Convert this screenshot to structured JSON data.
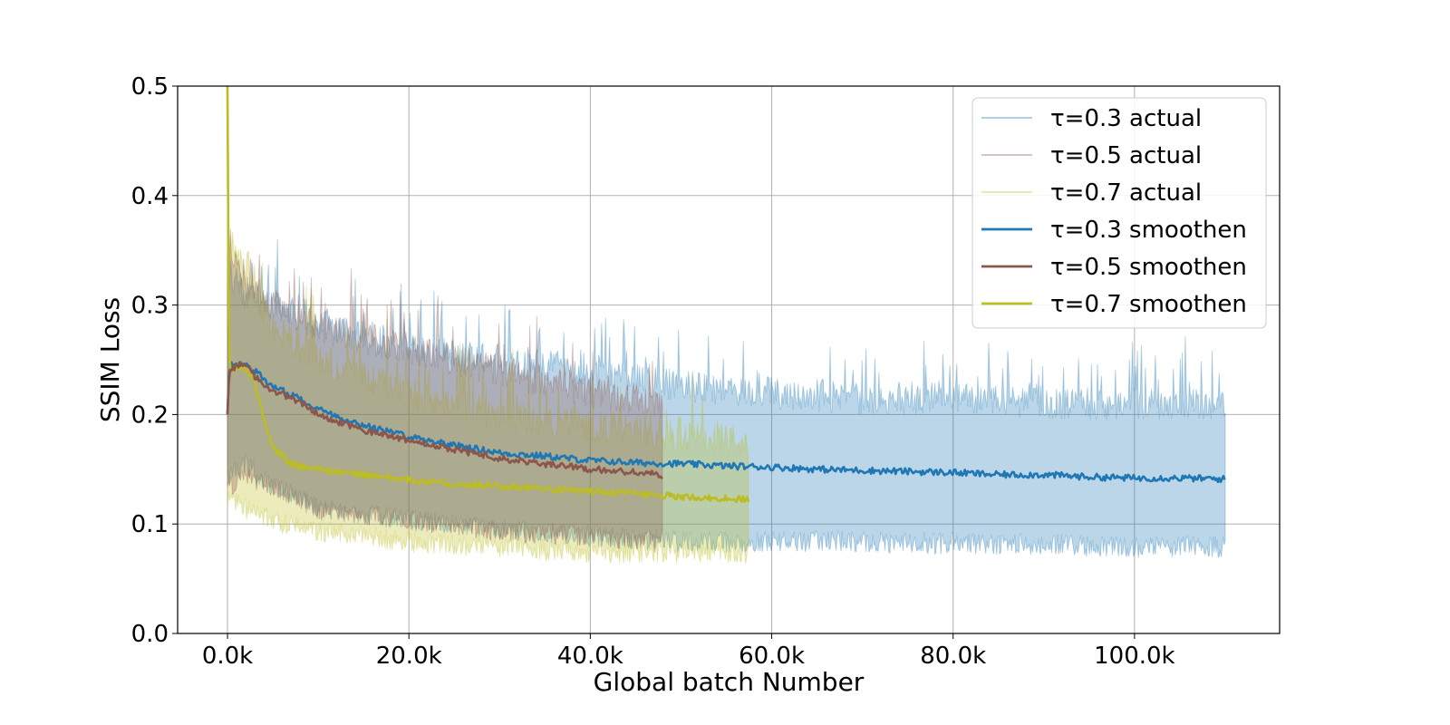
{
  "chart_data": {
    "type": "line",
    "title": "",
    "xlabel": "Global batch Number",
    "ylabel": "SSIM Loss",
    "xlim": [
      -5500,
      116000
    ],
    "ylim": [
      0.0,
      0.5
    ],
    "x_ticks": [
      0,
      20000,
      40000,
      60000,
      80000,
      100000
    ],
    "x_tick_labels": [
      "0.0k",
      "20.0k",
      "40.0k",
      "60.0k",
      "80.0k",
      "100.0k"
    ],
    "y_ticks": [
      0.0,
      0.1,
      0.2,
      0.3,
      0.4,
      0.5
    ],
    "y_tick_labels": [
      "0.0",
      "0.1",
      "0.2",
      "0.3",
      "0.4",
      "0.5"
    ],
    "grid": true,
    "legend_position": "top-right",
    "series": [
      {
        "name": "τ=0.3 actual",
        "kind": "band",
        "color": "#1f77b4",
        "opacity": 0.3,
        "x": [
          0,
          2000,
          5000,
          10000,
          20000,
          30000,
          40000,
          50000,
          60000,
          70000,
          80000,
          90000,
          100000,
          110000
        ],
        "lower": [
          0.15,
          0.16,
          0.14,
          0.12,
          0.11,
          0.1,
          0.095,
          0.09,
          0.09,
          0.09,
          0.088,
          0.087,
          0.085,
          0.085
        ],
        "upper": [
          0.33,
          0.31,
          0.3,
          0.28,
          0.26,
          0.25,
          0.24,
          0.225,
          0.22,
          0.215,
          0.215,
          0.21,
          0.21,
          0.21
        ]
      },
      {
        "name": "τ=0.5 actual",
        "kind": "band",
        "color": "#8c564b",
        "opacity": 0.3,
        "x": [
          0,
          2000,
          5000,
          10000,
          20000,
          30000,
          40000,
          48000
        ],
        "lower": [
          0.14,
          0.15,
          0.14,
          0.12,
          0.11,
          0.1,
          0.095,
          0.09
        ],
        "upper": [
          0.34,
          0.32,
          0.3,
          0.28,
          0.26,
          0.24,
          0.22,
          0.21
        ]
      },
      {
        "name": "τ=0.7 actual",
        "kind": "band",
        "color": "#bcbd22",
        "opacity": 0.3,
        "x": [
          0,
          2000,
          5000,
          10000,
          20000,
          30000,
          40000,
          50000,
          57500
        ],
        "lower": [
          0.13,
          0.12,
          0.11,
          0.1,
          0.09,
          0.085,
          0.08,
          0.08,
          0.08
        ],
        "upper": [
          0.36,
          0.33,
          0.28,
          0.25,
          0.22,
          0.2,
          0.19,
          0.18,
          0.175
        ]
      },
      {
        "name": "τ=0.3 smoothen",
        "kind": "line",
        "color": "#1f77b4",
        "x": [
          0,
          200,
          1000,
          2000,
          3000,
          5000,
          8000,
          10000,
          15000,
          20000,
          25000,
          30000,
          35000,
          40000,
          45000,
          50000,
          55000,
          60000,
          65000,
          70000,
          75000,
          80000,
          85000,
          90000,
          95000,
          100000,
          105000,
          110000
        ],
        "y": [
          0.2,
          0.245,
          0.246,
          0.245,
          0.24,
          0.225,
          0.215,
          0.205,
          0.19,
          0.18,
          0.172,
          0.165,
          0.162,
          0.158,
          0.156,
          0.155,
          0.153,
          0.152,
          0.15,
          0.149,
          0.148,
          0.147,
          0.145,
          0.145,
          0.143,
          0.142,
          0.142,
          0.141
        ]
      },
      {
        "name": "τ=0.5 smoothen",
        "kind": "line",
        "color": "#8c564b",
        "x": [
          0,
          200,
          1000,
          2000,
          3000,
          5000,
          8000,
          10000,
          15000,
          20000,
          25000,
          30000,
          35000,
          40000,
          45000,
          48000
        ],
        "y": [
          0.2,
          0.24,
          0.245,
          0.244,
          0.235,
          0.222,
          0.212,
          0.2,
          0.185,
          0.177,
          0.168,
          0.16,
          0.155,
          0.15,
          0.147,
          0.145
        ]
      },
      {
        "name": "τ=0.7 smoothen",
        "kind": "line",
        "color": "#bcbd22",
        "x": [
          0,
          100,
          300,
          1000,
          2000,
          3000,
          4000,
          5000,
          7000,
          10000,
          15000,
          20000,
          25000,
          30000,
          35000,
          40000,
          45000,
          50000,
          55000,
          57500
        ],
        "y": [
          0.5,
          0.3,
          0.24,
          0.243,
          0.242,
          0.23,
          0.195,
          0.17,
          0.155,
          0.15,
          0.145,
          0.14,
          0.137,
          0.135,
          0.132,
          0.13,
          0.128,
          0.125,
          0.123,
          0.123
        ]
      }
    ]
  }
}
